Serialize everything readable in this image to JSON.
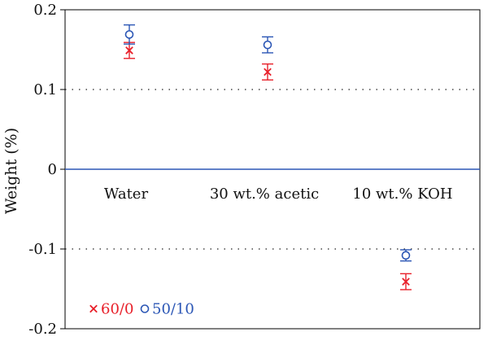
{
  "chart_data": {
    "type": "scatter",
    "title": "",
    "xlabel": "",
    "ylabel": "Weight (%)",
    "ylim": [
      -0.2,
      0.2
    ],
    "yticks": [
      0.2,
      0.1,
      0,
      -0.1,
      -0.2
    ],
    "ytick_labels": [
      "0.2",
      "0.1",
      "0",
      "-0.1",
      "-0.2"
    ],
    "categories": [
      "Water",
      "30 wt.% acetic",
      "10 wt.% KOH"
    ],
    "error_bars": true,
    "grid": "dotted at ±0.1",
    "zero_line": true,
    "legend_position": "bottom-left",
    "series": [
      {
        "name": "60/0",
        "marker": "x",
        "color": "#e8202a",
        "values": [
          0.149,
          0.122,
          -0.141
        ],
        "errors": [
          0.01,
          0.01,
          0.01
        ]
      },
      {
        "name": "50/10",
        "marker": "o",
        "color": "#2b56b5",
        "values": [
          0.169,
          0.156,
          -0.108
        ],
        "errors": [
          0.012,
          0.01,
          0.007
        ]
      }
    ]
  }
}
